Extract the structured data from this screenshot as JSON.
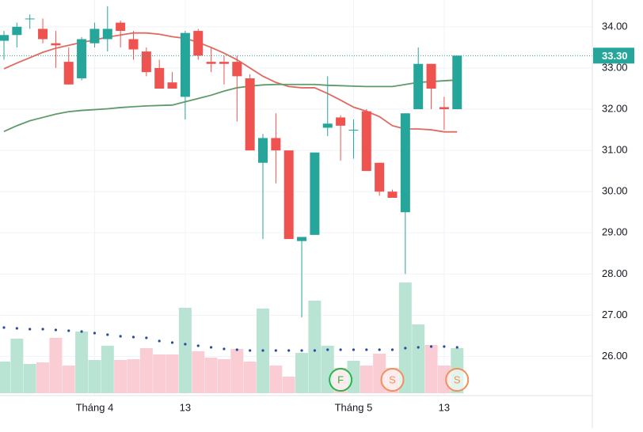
{
  "chart_data": {
    "type": "candlestick",
    "categories": [
      null,
      null,
      null,
      null,
      null,
      null,
      null,
      "Tháng 4",
      null,
      null,
      null,
      null,
      null,
      null,
      "13",
      null,
      null,
      null,
      null,
      null,
      null,
      null,
      null,
      null,
      null,
      null,
      null,
      "Tháng 5",
      null,
      null,
      null,
      null,
      null,
      null,
      "13",
      null
    ],
    "open": [
      33.66,
      33.8,
      34.2,
      33.95,
      33.6,
      33.15,
      32.75,
      33.6,
      33.7,
      34.1,
      33.7,
      33.4,
      33.0,
      32.65,
      32.3,
      33.9,
      33.15,
      33.15,
      33.15,
      32.75,
      30.7,
      31.3,
      31.0,
      28.8,
      28.95,
      31.55,
      31.8,
      31.5,
      31.95,
      30.7,
      30.0,
      29.5,
      32.0,
      33.1,
      32.05,
      32.0
    ],
    "high": [
      33.9,
      34.1,
      34.3,
      34.2,
      33.9,
      33.5,
      33.75,
      34.1,
      34.5,
      34.15,
      33.9,
      33.5,
      33.2,
      32.9,
      33.9,
      33.95,
      33.5,
      33.3,
      33.3,
      32.85,
      31.4,
      31.9,
      31.0,
      28.9,
      30.95,
      32.8,
      31.85,
      31.75,
      32.0,
      30.7,
      30.05,
      31.9,
      33.5,
      33.1,
      32.3,
      33.3
    ],
    "low": [
      33.2,
      33.5,
      33.95,
      33.6,
      33.0,
      32.6,
      32.7,
      33.5,
      33.4,
      33.5,
      33.2,
      32.8,
      32.5,
      32.5,
      31.75,
      33.2,
      32.9,
      32.6,
      31.7,
      31.0,
      28.85,
      30.2,
      28.85,
      26.95,
      28.95,
      31.35,
      30.75,
      30.8,
      30.5,
      29.9,
      29.85,
      28.0,
      32.0,
      32.0,
      31.5,
      32.0
    ],
    "close": [
      33.8,
      34.0,
      34.2,
      33.7,
      33.55,
      32.6,
      33.7,
      33.95,
      33.95,
      33.9,
      33.45,
      32.9,
      32.5,
      32.5,
      33.85,
      33.3,
      33.1,
      33.1,
      32.8,
      31.0,
      31.3,
      31.0,
      28.85,
      28.9,
      30.95,
      31.65,
      31.6,
      31.5,
      30.5,
      30.0,
      29.85,
      31.9,
      33.1,
      32.5,
      32.0,
      33.3
    ],
    "up_color": "#26a69a",
    "down_color": "#ef5350",
    "volume": [
      40,
      69,
      37,
      39,
      70,
      35,
      78,
      42,
      60,
      42,
      43,
      57,
      49,
      49,
      108,
      53,
      45,
      43,
      56,
      40,
      107,
      35,
      21,
      51,
      117,
      60,
      32,
      41,
      35,
      50,
      32,
      140,
      87,
      61,
      35,
      57
    ],
    "volume_up_color": "#b9e4d3",
    "volume_down_color": "#f9cdd3",
    "volume_ylim": [
      0,
      150
    ],
    "volume_ma": {
      "color": "#2a4a9a",
      "values": [
        83,
        82,
        81,
        81,
        80,
        79,
        78,
        76,
        74,
        72,
        71,
        70,
        66,
        64,
        62,
        60,
        58,
        56,
        55,
        54,
        54,
        54,
        54,
        54,
        54,
        55,
        55,
        55,
        55,
        55,
        55,
        57,
        58,
        59,
        59,
        58
      ]
    },
    "moving_averages": [
      {
        "color": "#e06a60",
        "values": [
          32.98,
          33.12,
          33.25,
          33.38,
          33.48,
          33.55,
          33.62,
          33.68,
          33.75,
          33.8,
          33.85,
          33.85,
          33.82,
          33.76,
          33.72,
          33.62,
          33.5,
          33.36,
          33.2,
          33.0,
          32.8,
          32.65,
          32.55,
          32.52,
          32.52,
          32.38,
          32.22,
          32.05,
          31.95,
          31.82,
          31.6,
          31.52,
          31.52,
          31.5,
          31.45,
          31.45
        ]
      },
      {
        "color": "#5f9a6a",
        "values": [
          31.46,
          31.6,
          31.72,
          31.8,
          31.88,
          31.94,
          31.97,
          31.99,
          32.01,
          32.04,
          32.06,
          32.08,
          32.09,
          32.1,
          32.18,
          32.26,
          32.34,
          32.44,
          32.52,
          32.56,
          32.59,
          32.6,
          32.6,
          32.6,
          32.6,
          32.58,
          32.57,
          32.56,
          32.55,
          32.55,
          32.55,
          32.6,
          32.65,
          32.67,
          32.69,
          32.71
        ]
      }
    ],
    "ylim": [
      25.05,
      34.65
    ],
    "yticks": [
      {
        "value": 26,
        "label": "26.00"
      },
      {
        "value": 27,
        "label": "27.00"
      },
      {
        "value": 28,
        "label": "28.00"
      },
      {
        "value": 29,
        "label": "29.00"
      },
      {
        "value": 30,
        "label": "30.00"
      },
      {
        "value": 31,
        "label": "31.00"
      },
      {
        "value": 32,
        "label": "32.00"
      },
      {
        "value": 33,
        "label": "33.00"
      },
      {
        "value": 34,
        "label": "34.00"
      }
    ],
    "last_price": {
      "value": 33.3,
      "label": "33.30",
      "color": "#26a69a"
    },
    "events": [
      {
        "label": "F",
        "index": 26,
        "color": "#2db34a"
      },
      {
        "label": "S",
        "index": 30,
        "color": "#f0905a"
      },
      {
        "label": "S",
        "index": 35,
        "color": "#f0905a"
      }
    ],
    "grid": true
  }
}
